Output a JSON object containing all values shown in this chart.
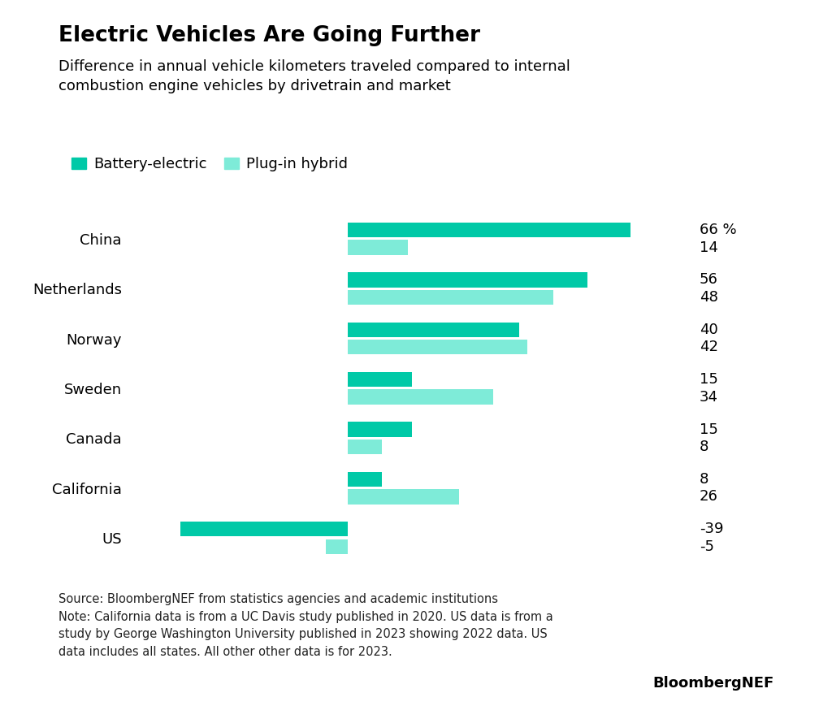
{
  "title": "Electric Vehicles Are Going Further",
  "subtitle": "Difference in annual vehicle kilometers traveled compared to internal\ncombustion engine vehicles by drivetrain and market",
  "categories": [
    "China",
    "Netherlands",
    "Norway",
    "Sweden",
    "Canada",
    "California",
    "US"
  ],
  "battery_electric": [
    66,
    56,
    40,
    15,
    15,
    8,
    -39
  ],
  "plug_in_hybrid": [
    14,
    48,
    42,
    34,
    8,
    26,
    -5
  ],
  "battery_color": "#00C9A7",
  "plugin_color": "#7EEBD8",
  "legend_battery": "Battery-electric",
  "legend_plugin": "Plug-in hybrid",
  "xlim": [
    -50,
    80
  ],
  "source_text": "Source: BloombergNEF from statistics agencies and academic institutions\nNote: California data is from a UC Davis study published in 2020. US data is from a\nstudy by George Washington University published in 2023 showing 2022 data. US\ndata includes all states. All other other data is for 2023.",
  "bloomberg_nef": "BloombergNEF",
  "background_color": "#ffffff",
  "bar_height": 0.3,
  "bar_gap": 0.05,
  "title_fontsize": 19,
  "subtitle_fontsize": 13,
  "label_fontsize": 13,
  "value_fontsize": 13,
  "source_fontsize": 10.5
}
